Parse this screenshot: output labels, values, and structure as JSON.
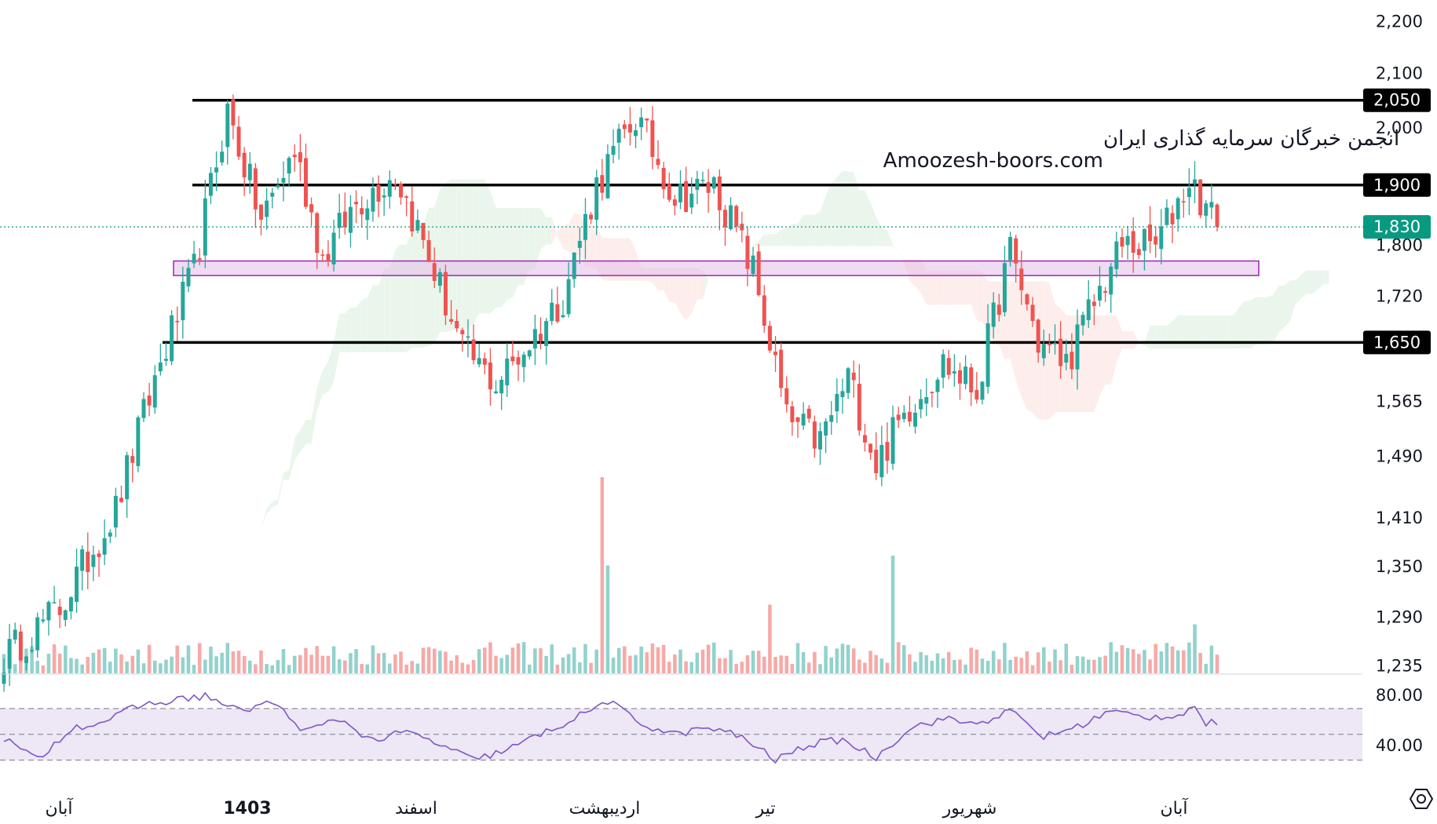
{
  "watermark": {
    "line1": "انجمن خبرگان سرمایه گذاری ایران",
    "line2": "Amoozesh-boors.com"
  },
  "colors": {
    "up": "#26a69a",
    "down": "#ef5350",
    "level_line": "#000000",
    "zone_fill": "#e1bee7",
    "zone_stroke": "#9c27b0",
    "rsi_line": "#7e57c2",
    "rsi_band": "#ede7f6",
    "cloud_bull": "#e8f5e9",
    "cloud_bear": "#fdecea",
    "current_badge": "#089981"
  },
  "chart_data": [
    {
      "type": "candlestick",
      "price_axis": {
        "ticks": [
          "2,200",
          "2,100",
          "2,000",
          "1,800",
          "1,720",
          "1,565",
          "1,490",
          "1,410",
          "1,350",
          "1,290",
          "1,235"
        ],
        "tick_values": [
          2200,
          2100,
          2000,
          1800,
          1720,
          1565,
          1490,
          1410,
          1350,
          1290,
          1235
        ],
        "scale": "log",
        "range": [
          1225,
          2230
        ]
      },
      "time_axis": {
        "labels": [
          "آبان",
          "1403",
          "اسفند",
          "اردیبهشت",
          "تیر",
          "شهریور",
          "آبان"
        ],
        "bold": [
          false,
          true,
          false,
          false,
          false,
          false,
          false
        ]
      },
      "horizontal_levels": [
        {
          "value": 2050,
          "label": "2,050"
        },
        {
          "value": 1900,
          "label": "1,900"
        },
        {
          "value": 1650,
          "label": "1,650"
        }
      ],
      "support_zone": {
        "low": 1752,
        "high": 1775
      },
      "current_price": {
        "value": 1830,
        "label": "1,830"
      },
      "ohlc_keypoints": [
        [
          0,
          1245
        ],
        [
          10,
          1300
        ],
        [
          20,
          1420
        ],
        [
          28,
          1620
        ],
        [
          34,
          1760
        ],
        [
          40,
          2030
        ],
        [
          46,
          1840
        ],
        [
          52,
          1960
        ],
        [
          57,
          1780
        ],
        [
          63,
          1870
        ],
        [
          70,
          1920
        ],
        [
          76,
          1780
        ],
        [
          82,
          1640
        ],
        [
          88,
          1590
        ],
        [
          94,
          1650
        ],
        [
          100,
          1720
        ],
        [
          106,
          1900
        ],
        [
          113,
          2020
        ],
        [
          120,
          1880
        ],
        [
          127,
          1900
        ],
        [
          134,
          1760
        ],
        [
          140,
          1540
        ],
        [
          146,
          1510
        ],
        [
          151,
          1600
        ],
        [
          156,
          1480
        ],
        [
          162,
          1560
        ],
        [
          168,
          1620
        ],
        [
          174,
          1580
        ],
        [
          180,
          1790
        ],
        [
          185,
          1650
        ],
        [
          190,
          1620
        ],
        [
          195,
          1710
        ],
        [
          200,
          1800
        ],
        [
          206,
          1800
        ],
        [
          212,
          1910
        ],
        [
          217,
          1830
        ]
      ],
      "volume_spikes": [
        {
          "index": 107,
          "value": 1.0
        },
        {
          "index": 108,
          "value": 0.55
        },
        {
          "index": 159,
          "value": 0.6
        },
        {
          "index": 137,
          "value": 0.35
        },
        {
          "index": 213,
          "value": 0.25
        }
      ]
    },
    {
      "type": "line",
      "name": "RSI",
      "axis_ticks": [
        "80.00",
        "40.00"
      ],
      "levels": [
        70,
        50,
        30
      ],
      "range": [
        20,
        90
      ],
      "keypoints": [
        [
          0,
          47
        ],
        [
          6,
          30
        ],
        [
          12,
          55
        ],
        [
          18,
          60
        ],
        [
          24,
          72
        ],
        [
          30,
          76
        ],
        [
          36,
          80
        ],
        [
          42,
          68
        ],
        [
          48,
          75
        ],
        [
          54,
          52
        ],
        [
          60,
          62
        ],
        [
          66,
          45
        ],
        [
          72,
          52
        ],
        [
          78,
          42
        ],
        [
          84,
          30
        ],
        [
          90,
          38
        ],
        [
          96,
          50
        ],
        [
          102,
          62
        ],
        [
          108,
          76
        ],
        [
          114,
          58
        ],
        [
          120,
          50
        ],
        [
          126,
          55
        ],
        [
          132,
          48
        ],
        [
          138,
          30
        ],
        [
          144,
          42
        ],
        [
          150,
          46
        ],
        [
          156,
          32
        ],
        [
          162,
          55
        ],
        [
          168,
          62
        ],
        [
          174,
          58
        ],
        [
          180,
          68
        ],
        [
          186,
          48
        ],
        [
          192,
          56
        ],
        [
          198,
          68
        ],
        [
          204,
          63
        ],
        [
          210,
          65
        ],
        [
          213,
          72
        ],
        [
          215,
          58
        ],
        [
          218,
          60
        ]
      ]
    }
  ]
}
